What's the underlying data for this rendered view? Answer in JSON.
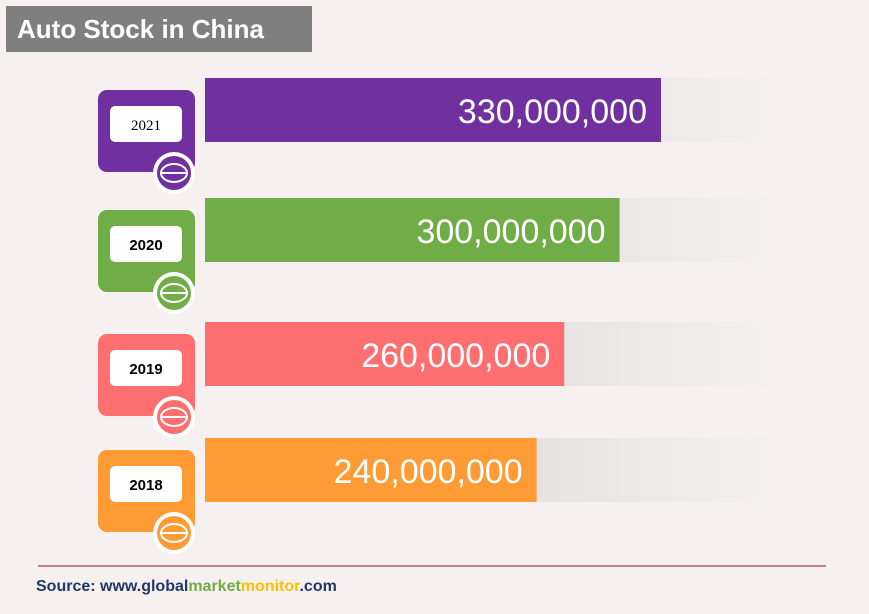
{
  "title": "Auto Stock in China",
  "source": {
    "prefix": "Source: www.",
    "part1": "global",
    "part2": "market",
    "part3": "monitor",
    "suffix": ".com"
  },
  "colors": {
    "title_bg": "#7f7f7f",
    "background": "#f6f1f0",
    "axis_line": "#8b1a1a",
    "track_gray": "#d9d9d9"
  },
  "chart_data": {
    "type": "bar",
    "orientation": "horizontal",
    "categories": [
      "2021",
      "2020",
      "2019",
      "2018"
    ],
    "values": [
      330000000,
      300000000,
      260000000,
      240000000
    ],
    "value_labels": [
      "330,000,000",
      "300,000,000",
      "260,000,000",
      "240,000,000"
    ],
    "colors": [
      "#7030a0",
      "#70ad47",
      "#ff6f6f",
      "#ff9b34"
    ],
    "xlim": [
      0,
      400000000
    ]
  }
}
